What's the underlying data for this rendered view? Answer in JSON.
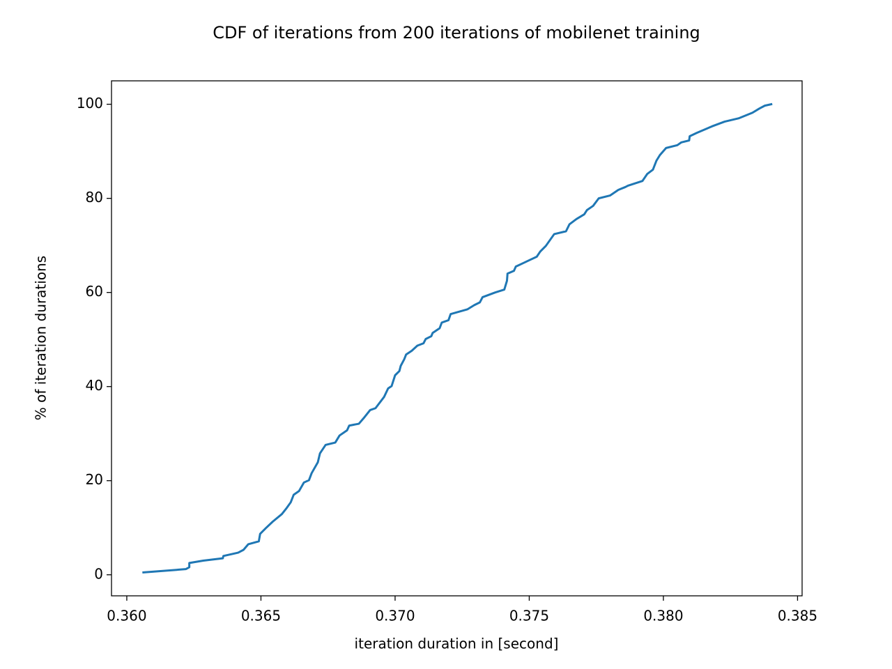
{
  "chart_data": {
    "type": "line",
    "title": "CDF of iterations from 200 iterations of mobilenet training",
    "xlabel": "iteration duration in [second]",
    "ylabel": "% of iteration durations",
    "color": "#1f77b4",
    "x": [
      0.36062,
      0.3622,
      0.36233,
      0.36233,
      0.36285,
      0.36358,
      0.3636,
      0.36415,
      0.36435,
      0.36453,
      0.36492,
      0.36497,
      0.36518,
      0.36544,
      0.36578,
      0.36596,
      0.36611,
      0.36622,
      0.36642,
      0.3666,
      0.36679,
      0.36689,
      0.36712,
      0.3672,
      0.36741,
      0.36777,
      0.36793,
      0.36821,
      0.36829,
      0.36865,
      0.36886,
      0.36907,
      0.36927,
      0.36959,
      0.36974,
      0.36987,
      0.37,
      0.37016,
      0.37021,
      0.37034,
      0.37041,
      0.37062,
      0.37083,
      0.37106,
      0.37114,
      0.37135,
      0.3714,
      0.37166,
      0.37174,
      0.37199,
      0.37207,
      0.37269,
      0.37295,
      0.37316,
      0.37326,
      0.37373,
      0.37407,
      0.37417,
      0.37419,
      0.37443,
      0.3745,
      0.37476,
      0.37528,
      0.37541,
      0.37562,
      0.37593,
      0.37637,
      0.3765,
      0.37676,
      0.37705,
      0.37715,
      0.37738,
      0.37759,
      0.37801,
      0.37832,
      0.37858,
      0.37868,
      0.37922,
      0.3794,
      0.37961,
      0.37974,
      0.37987,
      0.3801,
      0.38052,
      0.38067,
      0.38096,
      0.38098,
      0.38124,
      0.38181,
      0.38228,
      0.3828,
      0.38332,
      0.38358,
      0.38378,
      0.38402
    ],
    "values": [
      0.5,
      1.2,
      1.6,
      2.5,
      3.0,
      3.5,
      4.0,
      4.7,
      5.3,
      6.5,
      7.1,
      8.7,
      9.9,
      11.3,
      12.9,
      14.2,
      15.4,
      17.0,
      17.8,
      19.6,
      20.1,
      21.6,
      23.9,
      25.8,
      27.6,
      28.1,
      29.6,
      30.7,
      31.7,
      32.1,
      33.5,
      35.0,
      35.4,
      37.8,
      39.6,
      40.1,
      42.4,
      43.3,
      44.4,
      45.8,
      46.8,
      47.6,
      48.7,
      49.2,
      50.1,
      50.7,
      51.4,
      52.4,
      53.6,
      54.1,
      55.4,
      56.4,
      57.3,
      57.9,
      59.0,
      60.0,
      60.6,
      62.5,
      64.0,
      64.6,
      65.5,
      66.2,
      67.6,
      68.7,
      69.9,
      72.4,
      73.0,
      74.5,
      75.6,
      76.6,
      77.5,
      78.4,
      80.0,
      80.6,
      81.8,
      82.4,
      82.7,
      83.7,
      85.2,
      86.1,
      88.0,
      89.2,
      90.7,
      91.3,
      91.9,
      92.3,
      93.2,
      93.9,
      95.3,
      96.3,
      97.0,
      98.2,
      99.1,
      99.7,
      100
    ],
    "xlim": [
      0.35943,
      0.38517
    ],
    "ylim": [
      -4.475,
      104.975
    ],
    "xticks": [
      {
        "value": 0.36,
        "label": "0.360"
      },
      {
        "value": 0.365,
        "label": "0.365"
      },
      {
        "value": 0.37,
        "label": "0.370"
      },
      {
        "value": 0.375,
        "label": "0.375"
      },
      {
        "value": 0.38,
        "label": "0.380"
      },
      {
        "value": 0.385,
        "label": "0.385"
      }
    ],
    "yticks": [
      0,
      20,
      40,
      60,
      80,
      100
    ]
  }
}
